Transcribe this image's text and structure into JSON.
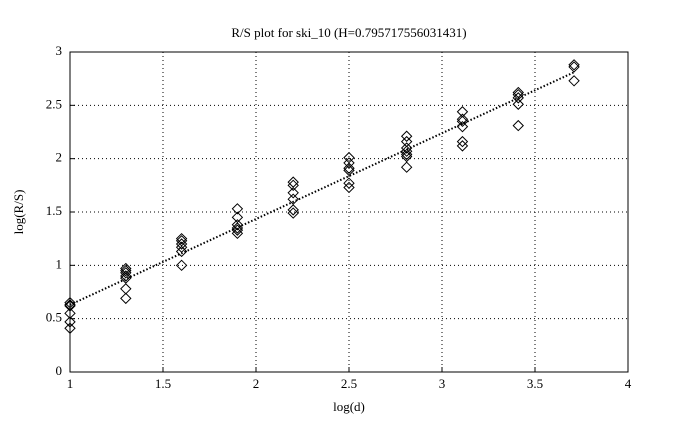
{
  "chart_data": {
    "type": "scatter",
    "title": "R/S plot for ski_10 (H=0.795717556031431)",
    "x_label": "log(d)",
    "y_label": "log(R/S)",
    "xlim": [
      1,
      4
    ],
    "ylim": [
      0,
      3
    ],
    "xticks": [
      1,
      1.5,
      2,
      2.5,
      3,
      3.5,
      4
    ],
    "yticks": [
      0,
      0.5,
      1,
      1.5,
      2,
      2.5,
      3
    ],
    "grid": true,
    "series": [
      {
        "type": "scatter",
        "color": "#000000",
        "x": [
          1,
          1,
          1,
          1,
          1,
          1,
          1.3,
          1.3,
          1.3,
          1.3,
          1.3,
          1.3,
          1.3,
          1.6,
          1.6,
          1.6,
          1.6,
          1.6,
          1.6,
          1.9,
          1.9,
          1.9,
          1.9,
          1.9,
          1.9,
          2.2,
          2.2,
          2.2,
          2.2,
          2.2,
          2.2,
          2.5,
          2.5,
          2.5,
          2.5,
          2.5,
          2.5,
          2.81,
          2.81,
          2.81,
          2.81,
          2.81,
          2.81,
          2.81,
          3.11,
          3.11,
          3.11,
          3.11,
          3.11,
          3.11,
          3.41,
          3.41,
          3.41,
          3.41,
          3.41,
          3.71,
          3.71,
          3.71
        ],
        "values": [
          0.65,
          0.63,
          0.62,
          0.55,
          0.47,
          0.41,
          0.97,
          0.95,
          0.93,
          0.9,
          0.88,
          0.78,
          0.69,
          1.25,
          1.23,
          1.2,
          1.17,
          1.13,
          1.0,
          1.53,
          1.45,
          1.38,
          1.35,
          1.33,
          1.3,
          1.78,
          1.75,
          1.68,
          1.62,
          1.52,
          1.49,
          2.01,
          1.96,
          1.91,
          1.89,
          1.77,
          1.73,
          2.21,
          2.16,
          2.1,
          2.07,
          2.04,
          2.02,
          1.92,
          2.44,
          2.37,
          2.35,
          2.3,
          2.16,
          2.12,
          2.62,
          2.6,
          2.57,
          2.51,
          2.31,
          2.88,
          2.86,
          2.73
        ]
      },
      {
        "type": "line",
        "color": "#000000",
        "line_style": "dotted",
        "x": [
          1,
          3.71
        ],
        "values": [
          0.63,
          2.81
        ]
      }
    ]
  }
}
